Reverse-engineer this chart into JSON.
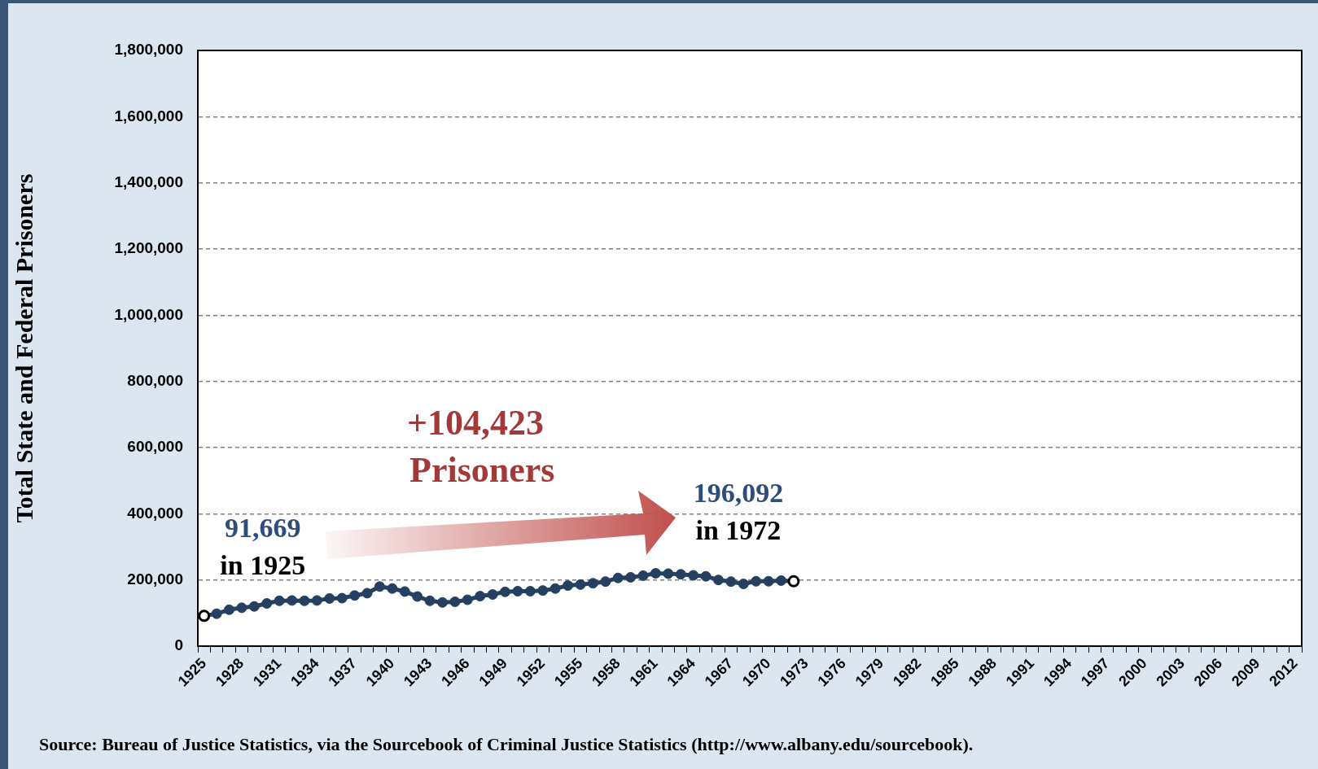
{
  "chart_data": {
    "type": "line",
    "ylabel": "Total State and Federal Prisoners",
    "categories": [
      "1925",
      null,
      null,
      "1928",
      null,
      null,
      "1931",
      null,
      null,
      "1934",
      null,
      null,
      "1937",
      null,
      null,
      "1940",
      null,
      null,
      "1943",
      null,
      null,
      "1946",
      null,
      null,
      "1949",
      null,
      null,
      "1952",
      null,
      null,
      "1955",
      null,
      null,
      "1958",
      null,
      null,
      "1961",
      null,
      null,
      "1964",
      null,
      null,
      "1967",
      null,
      null,
      "1970",
      null,
      null,
      "1973",
      null,
      null,
      "1976",
      null,
      null,
      "1979",
      null,
      null,
      "1982",
      null,
      null,
      "1985",
      null,
      null,
      "1988",
      null,
      null,
      "1991",
      null,
      null,
      "1994",
      null,
      null,
      "1997",
      null,
      null,
      "2000",
      null,
      null,
      "2003",
      null,
      null,
      "2006",
      null,
      null,
      "2009",
      null,
      null,
      "2012"
    ],
    "series": [
      {
        "color": "#243f60",
        "colors": [
          "#ffffff",
          "#243f60",
          "#243f60",
          "#243f60",
          "#243f60",
          "#243f60",
          "#243f60",
          "#243f60",
          "#243f60",
          "#243f60",
          "#243f60",
          "#243f60",
          "#243f60",
          "#243f60",
          "#243f60",
          "#243f60",
          "#243f60",
          "#243f60",
          "#243f60",
          "#243f60",
          "#243f60",
          "#243f60",
          "#243f60",
          "#243f60",
          "#243f60",
          "#243f60",
          "#243f60",
          "#243f60",
          "#243f60",
          "#243f60",
          "#243f60",
          "#243f60",
          "#243f60",
          "#243f60",
          "#243f60",
          "#243f60",
          "#243f60",
          "#243f60",
          "#243f60",
          "#243f60",
          "#243f60",
          "#243f60",
          "#243f60",
          "#243f60",
          "#243f60",
          "#243f60",
          "#243f60",
          "#ffffff",
          null,
          null,
          null,
          null,
          null,
          null,
          null,
          null,
          null,
          null,
          null,
          null,
          null,
          null,
          null,
          null,
          null,
          null,
          null,
          null,
          null,
          null,
          null,
          null,
          null,
          null,
          null,
          null,
          null,
          null,
          null,
          null,
          null,
          null,
          null,
          null,
          null,
          null,
          null,
          null
        ],
        "values": [
          91669,
          98000,
          110000,
          116000,
          120000,
          129000,
          137000,
          138000,
          137000,
          138000,
          144000,
          145000,
          153000,
          160000,
          180000,
          174000,
          165000,
          150000,
          137000,
          132000,
          134000,
          140000,
          151000,
          156000,
          164000,
          166000,
          166000,
          168000,
          174000,
          183000,
          186000,
          190000,
          195000,
          206000,
          208000,
          213000,
          220000,
          219000,
          217000,
          214000,
          211000,
          200000,
          195000,
          188000,
          196000,
          196000,
          198000,
          196092,
          null,
          null,
          null,
          null,
          null,
          null,
          null,
          null,
          null,
          null,
          null,
          null,
          null,
          null,
          null,
          null,
          null,
          null,
          null,
          null,
          null,
          null,
          null,
          null,
          null,
          null,
          null,
          null,
          null,
          null,
          null,
          null,
          null,
          null,
          null,
          null,
          null,
          null,
          null,
          null
        ]
      }
    ],
    "ylim": [
      0,
      1800000
    ],
    "yticks": [
      0,
      {
        "value": 200000,
        "label": "200,000"
      },
      {
        "value": 400000,
        "label": "400,000"
      },
      {
        "value": 600000,
        "label": "600,000"
      },
      {
        "value": 800000,
        "label": "800,000"
      },
      {
        "value": 1000000,
        "label": "1,000,000"
      },
      {
        "value": 1200000,
        "label": "1,200,000"
      },
      {
        "value": 1400000,
        "label": "1,400,000"
      },
      {
        "value": 1600000,
        "label": "1,600,000"
      },
      {
        "value": 1800000,
        "label": "1,800,000"
      }
    ],
    "grid": "y",
    "marker": "circle",
    "legend": false,
    "annotations": [
      {
        "text": "91,669",
        "x": "1925",
        "y": 91669
      },
      {
        "text": "in 1925",
        "x": "1925",
        "y": 91669
      },
      {
        "text": "196,092",
        "y": 196092
      },
      {
        "text": "in 1972",
        "y": 196092
      },
      "+104,423",
      "Prisoners",
      "Source: Bureau of Justice Statistics, via the Sourcebook of Criminal Justice Statistics (http://www.albany.edu/sourcebook)."
    ]
  }
}
